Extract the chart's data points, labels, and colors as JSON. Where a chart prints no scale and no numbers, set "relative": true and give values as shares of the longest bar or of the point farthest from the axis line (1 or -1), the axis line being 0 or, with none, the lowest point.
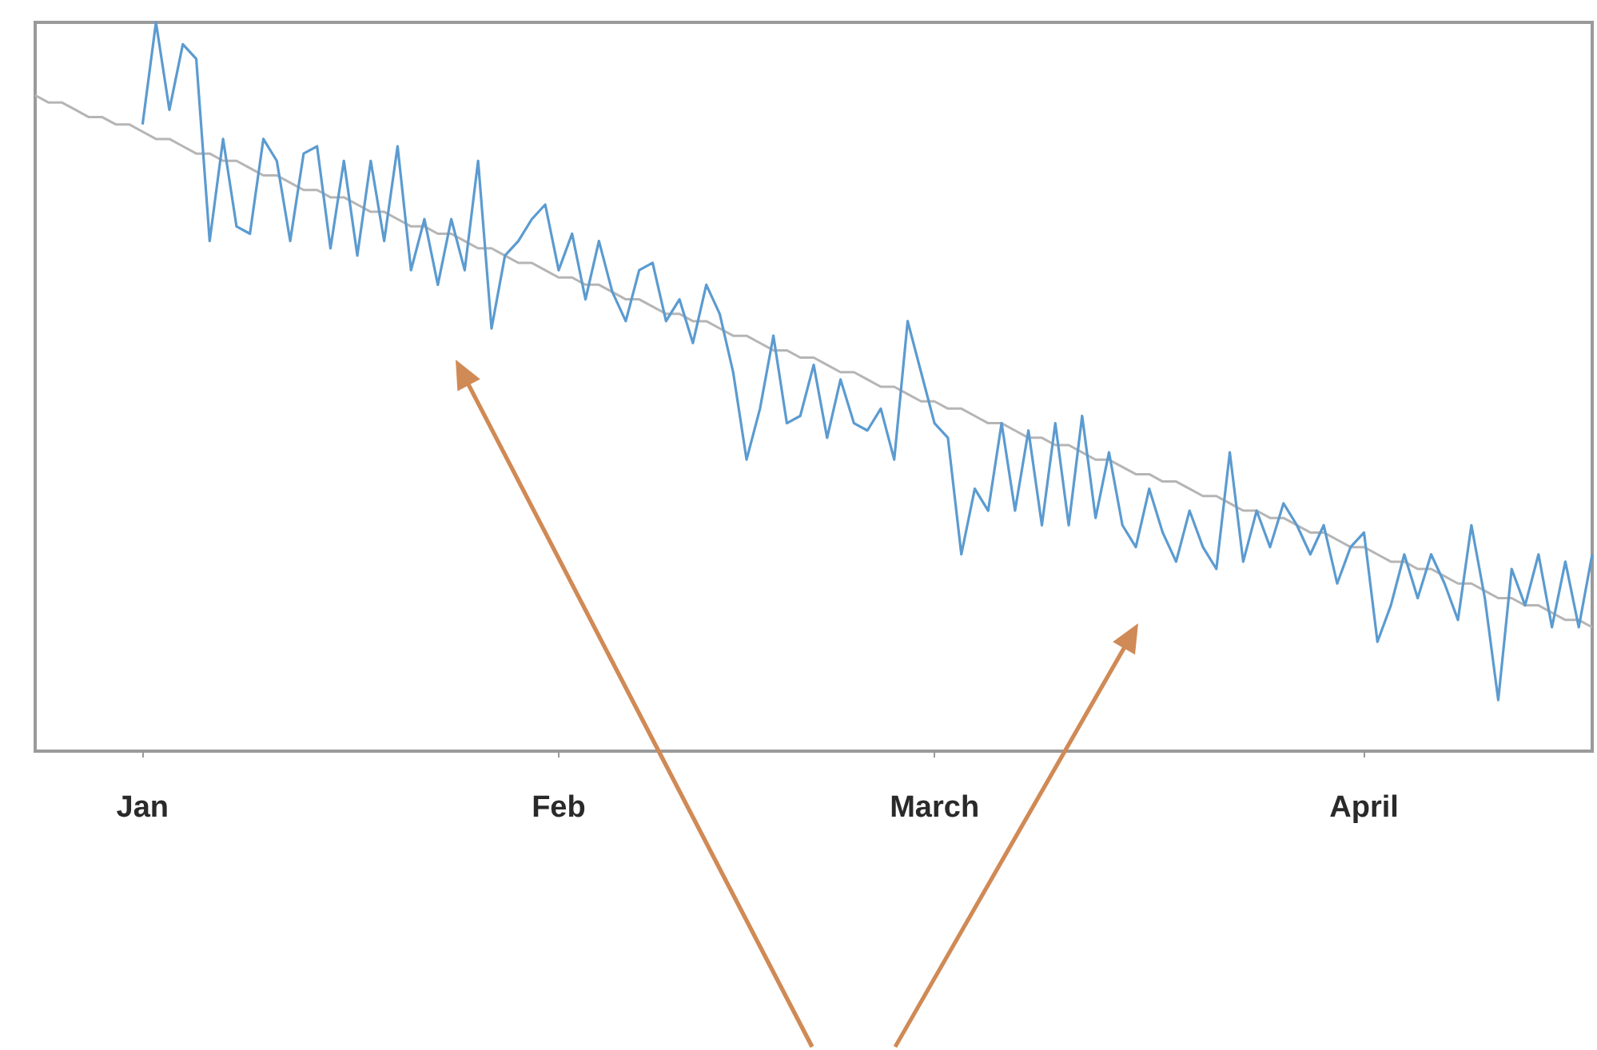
{
  "chart_data": {
    "type": "line",
    "relative": true,
    "marker": "none",
    "categories": [
      null,
      null,
      null,
      null,
      null,
      null,
      null,
      null,
      "Jan",
      null,
      null,
      null,
      null,
      null,
      null,
      null,
      null,
      null,
      null,
      null,
      null,
      null,
      null,
      null,
      null,
      null,
      null,
      null,
      null,
      null,
      null,
      null,
      null,
      null,
      null,
      null,
      null,
      null,
      null,
      "Feb",
      null,
      null,
      null,
      null,
      null,
      null,
      null,
      null,
      null,
      null,
      null,
      null,
      null,
      null,
      null,
      null,
      null,
      null,
      null,
      null,
      null,
      null,
      null,
      null,
      null,
      null,
      null,
      "March",
      null,
      null,
      null,
      null,
      null,
      null,
      null,
      null,
      null,
      null,
      null,
      null,
      null,
      null,
      null,
      null,
      null,
      null,
      null,
      null,
      null,
      null,
      null,
      null,
      null,
      null,
      null,
      null,
      null,
      null,
      null,
      "April",
      null,
      null,
      null,
      null,
      null,
      null,
      null,
      null,
      null,
      null,
      null,
      null,
      null,
      null,
      null,
      null,
      null
    ],
    "series": [
      {
        "color": "#5b9bd0",
        "values": [
          null,
          null,
          null,
          null,
          null,
          null,
          null,
          null,
          0.86,
          1,
          0.88,
          0.97,
          0.95,
          0.7,
          0.84,
          0.72,
          0.71,
          0.84,
          0.81,
          0.7,
          0.82,
          0.83,
          0.69,
          0.81,
          0.68,
          0.81,
          0.7,
          0.83,
          0.66,
          0.73,
          0.64,
          0.73,
          0.66,
          0.81,
          0.58,
          0.68,
          0.7,
          0.73,
          0.75,
          0.66,
          0.71,
          0.62,
          0.7,
          0.63,
          0.59,
          0.66,
          0.67,
          0.59,
          0.62,
          0.56,
          0.64,
          0.6,
          0.52,
          0.4,
          0.47,
          0.57,
          0.45,
          0.46,
          0.53,
          0.43,
          0.51,
          0.45,
          0.44,
          0.47,
          0.4,
          0.59,
          0.52,
          0.45,
          0.43,
          0.27,
          0.36,
          0.33,
          0.45,
          0.33,
          0.44,
          0.31,
          0.45,
          0.31,
          0.46,
          0.32,
          0.41,
          0.31,
          0.28,
          0.36,
          0.3,
          0.26,
          0.33,
          0.28,
          0.25,
          0.41,
          0.26,
          0.33,
          0.28,
          0.34,
          0.31,
          0.27,
          0.31,
          0.23,
          0.28,
          0.3,
          0.15,
          0.2,
          0.27,
          0.21,
          0.27,
          0.23,
          0.18,
          0.31,
          0.21,
          0.07,
          0.25,
          0.2,
          0.27,
          0.17,
          0.26,
          0.17,
          0.27
        ]
      },
      {
        "color": "#b5b5b5",
        "values": [
          0.9,
          0.89,
          0.89,
          0.88,
          0.87,
          0.87,
          0.86,
          0.86,
          0.85,
          0.84,
          0.84,
          0.83,
          0.82,
          0.82,
          0.81,
          0.81,
          0.8,
          0.79,
          0.79,
          0.78,
          0.77,
          0.77,
          0.76,
          0.76,
          0.75,
          0.74,
          0.74,
          0.73,
          0.72,
          0.72,
          0.71,
          0.71,
          0.7,
          0.69,
          0.69,
          0.68,
          0.67,
          0.67,
          0.66,
          0.65,
          0.65,
          0.64,
          0.64,
          0.63,
          0.62,
          0.62,
          0.61,
          0.6,
          0.6,
          0.59,
          0.59,
          0.58,
          0.57,
          0.57,
          0.56,
          0.55,
          0.55,
          0.54,
          0.54,
          0.53,
          0.52,
          0.52,
          0.51,
          0.5,
          0.5,
          0.49,
          0.48,
          0.48,
          0.47,
          0.47,
          0.46,
          0.45,
          0.45,
          0.44,
          0.43,
          0.43,
          0.42,
          0.42,
          0.41,
          0.4,
          0.4,
          0.39,
          0.38,
          0.38,
          0.37,
          0.37,
          0.36,
          0.35,
          0.35,
          0.34,
          0.33,
          0.33,
          0.32,
          0.32,
          0.31,
          0.3,
          0.3,
          0.29,
          0.28,
          0.28,
          0.27,
          0.26,
          0.26,
          0.25,
          0.25,
          0.24,
          0.23,
          0.23,
          0.22,
          0.21,
          0.21,
          0.2,
          0.2,
          0.19,
          0.18,
          0.18,
          0.17
        ]
      }
    ]
  }
}
